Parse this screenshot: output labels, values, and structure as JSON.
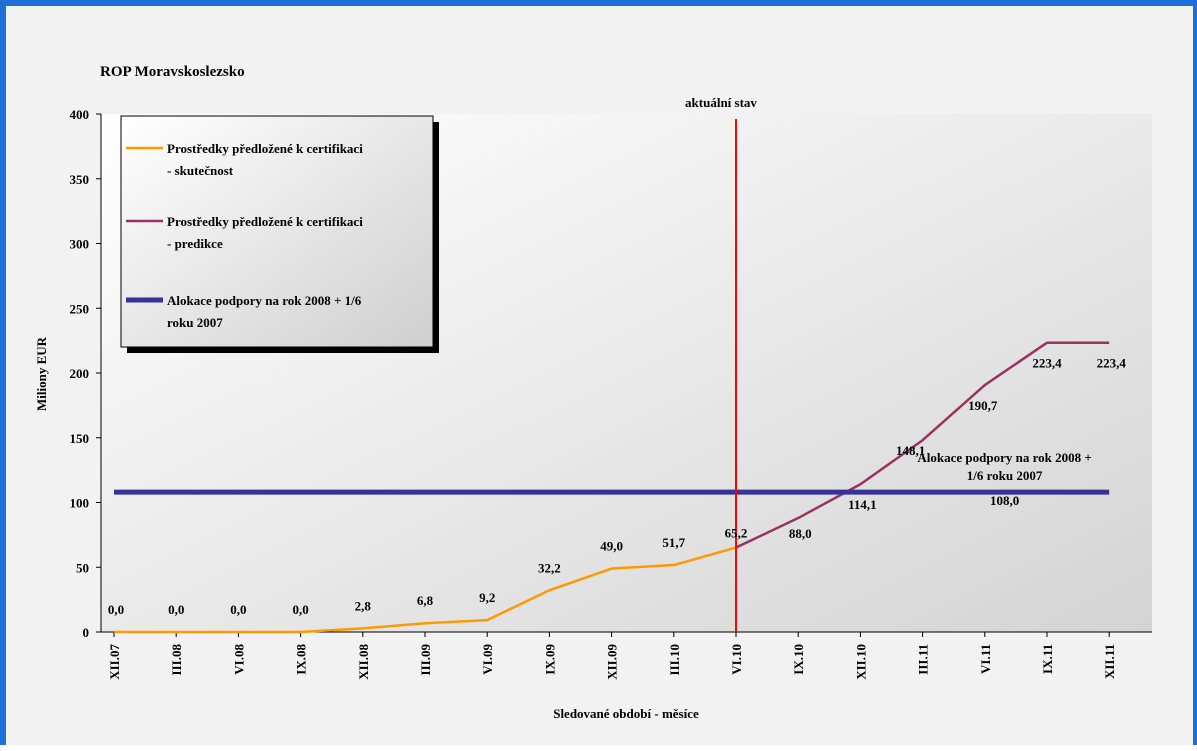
{
  "chart_data": {
    "type": "line",
    "title": "ROP Moravskoslezsko",
    "xlabel": "Sledované období - měsíce",
    "ylabel": "Miliony EUR",
    "ylim": [
      0,
      400
    ],
    "yticks": [
      "0",
      "50",
      "100",
      "150",
      "200",
      "250",
      "300",
      "350",
      "400"
    ],
    "categories": [
      "XII.07",
      "III.08",
      "VI.08",
      "IX.08",
      "XII.08",
      "III.09",
      "VI.09",
      "IX.09",
      "XII.09",
      "III.10",
      "VI.10",
      "IX.10",
      "XII.10",
      "III.11",
      "VI.11",
      "IX.11",
      "XII.11"
    ],
    "grid": false,
    "legend_position": "top-left",
    "series": [
      {
        "name": "Prostředky předložené k certifikaci - skutečnost",
        "name_lines": [
          "Prostředky předložené k certifikaci",
          "- skutečnost"
        ],
        "color": "#ff9900",
        "values": [
          0.0,
          0.0,
          0.0,
          0.0,
          2.8,
          6.8,
          9.2,
          32.2,
          49.0,
          51.7,
          65.2,
          null,
          null,
          null,
          null,
          null,
          null
        ],
        "labels": [
          "0,0",
          "0,0",
          "0,0",
          "0,0",
          "2,8",
          "6,8",
          "9,2",
          "32,2",
          "49,0",
          "51,7",
          "65,2",
          "",
          "",
          "",
          "",
          "",
          ""
        ]
      },
      {
        "name": "Prostředky předložené k certifikaci - predikce",
        "name_lines": [
          "Prostředky předložené k certifikaci",
          "- predikce"
        ],
        "color": "#993366",
        "values": [
          null,
          null,
          null,
          null,
          null,
          null,
          null,
          null,
          null,
          null,
          65.2,
          88.0,
          114.1,
          148.1,
          190.7,
          223.4,
          223.4
        ],
        "labels": [
          "",
          "",
          "",
          "",
          "",
          "",
          "",
          "",
          "",
          "",
          "",
          "88,0",
          "114,1",
          "148,1",
          "190,7",
          "223,4",
          "223,4"
        ]
      },
      {
        "name": "Alokace podpory na rok 2008 + 1/6 roku 2007",
        "name_lines": [
          "Alokace podpory na rok 2008 + 1/6",
          "roku 2007"
        ],
        "color": "#333399",
        "values": [
          108.0,
          108.0,
          108.0,
          108.0,
          108.0,
          108.0,
          108.0,
          108.0,
          108.0,
          108.0,
          108.0,
          108.0,
          108.0,
          108.0,
          108.0,
          108.0,
          108.0
        ],
        "label_value": "108,0",
        "label_name_lines": [
          "Alokace podpory na rok 2008 +",
          "1/6 roku 2007"
        ]
      }
    ],
    "annotations": [
      {
        "text": "aktuální stav",
        "x": "VI.10",
        "color": "#ff0000"
      }
    ]
  }
}
